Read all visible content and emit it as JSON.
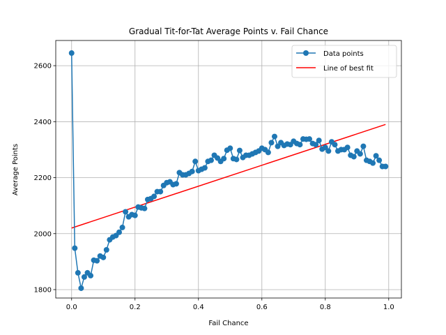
{
  "chart_data": {
    "type": "line",
    "title": "Gradual Tit-for-Tat Average Points v. Fail Chance",
    "xlabel": "Fail Chance",
    "ylabel": "Average Points",
    "xlim": [
      -0.05,
      1.04
    ],
    "ylim": [
      1770,
      2690
    ],
    "x_ticks": [
      0.0,
      0.2,
      0.4,
      0.6,
      0.8,
      1.0
    ],
    "x_tick_labels": [
      "0.0",
      "0.2",
      "0.4",
      "0.6",
      "0.8",
      "1.0"
    ],
    "y_ticks": [
      1800,
      2000,
      2200,
      2400,
      2600
    ],
    "y_tick_labels": [
      "1800",
      "2000",
      "2200",
      "2400",
      "2600"
    ],
    "grid": true,
    "legend_position": "top-right",
    "series": [
      {
        "name": "Data points",
        "color": "#1f77b4",
        "marker": "circle",
        "x": [
          0.0,
          0.01,
          0.02,
          0.03,
          0.04,
          0.05,
          0.06,
          0.07,
          0.08,
          0.09,
          0.1,
          0.11,
          0.12,
          0.13,
          0.14,
          0.15,
          0.16,
          0.17,
          0.18,
          0.19,
          0.2,
          0.21,
          0.22,
          0.23,
          0.24,
          0.25,
          0.26,
          0.27,
          0.28,
          0.29,
          0.3,
          0.31,
          0.32,
          0.33,
          0.34,
          0.35,
          0.36,
          0.37,
          0.38,
          0.39,
          0.4,
          0.41,
          0.42,
          0.43,
          0.44,
          0.45,
          0.46,
          0.47,
          0.48,
          0.49,
          0.5,
          0.51,
          0.52,
          0.53,
          0.54,
          0.55,
          0.56,
          0.57,
          0.58,
          0.59,
          0.6,
          0.61,
          0.62,
          0.63,
          0.64,
          0.65,
          0.66,
          0.67,
          0.68,
          0.69,
          0.7,
          0.71,
          0.72,
          0.73,
          0.74,
          0.75,
          0.76,
          0.77,
          0.78,
          0.79,
          0.8,
          0.81,
          0.82,
          0.83,
          0.84,
          0.85,
          0.86,
          0.87,
          0.88,
          0.89,
          0.9,
          0.91,
          0.92,
          0.93,
          0.94,
          0.95,
          0.96,
          0.97,
          0.98,
          0.99
        ],
        "y": [
          2645,
          1948,
          1860,
          1805,
          1845,
          1860,
          1850,
          1905,
          1903,
          1920,
          1915,
          1942,
          1978,
          1988,
          1993,
          2005,
          2022,
          2078,
          2060,
          2068,
          2065,
          2095,
          2092,
          2090,
          2122,
          2125,
          2133,
          2150,
          2150,
          2172,
          2182,
          2185,
          2175,
          2178,
          2218,
          2210,
          2210,
          2215,
          2222,
          2258,
          2225,
          2230,
          2235,
          2258,
          2262,
          2280,
          2270,
          2258,
          2268,
          2298,
          2305,
          2268,
          2265,
          2297,
          2272,
          2280,
          2280,
          2285,
          2290,
          2295,
          2305,
          2300,
          2290,
          2325,
          2347,
          2312,
          2325,
          2315,
          2320,
          2318,
          2330,
          2322,
          2318,
          2338,
          2337,
          2338,
          2322,
          2318,
          2333,
          2302,
          2308,
          2295,
          2328,
          2318,
          2295,
          2300,
          2300,
          2308,
          2280,
          2275,
          2295,
          2285,
          2312,
          2262,
          2258,
          2252,
          2278,
          2262,
          2240,
          2240
        ]
      },
      {
        "name": "Line of best fit",
        "color": "#ff0000",
        "x": [
          0.0,
          0.99
        ],
        "y": [
          2020,
          2390
        ]
      }
    ]
  }
}
